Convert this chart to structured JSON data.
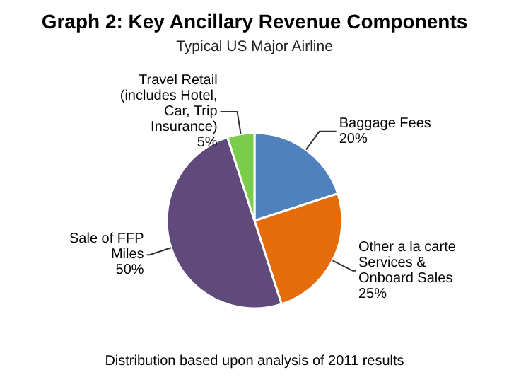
{
  "chart_data": {
    "type": "pie",
    "title": "Graph 2:  Key Ancillary Revenue Components",
    "subtitle": "Typical US Major Airline",
    "categories": [
      "Baggage Fees",
      "Other a la carte Services & Onboard Sales",
      "Sale of FFP Miles",
      "Travel Retail (includes Hotel, Car, Trip Insurance)"
    ],
    "values": [
      20,
      25,
      50,
      5
    ],
    "colors": [
      "#4f81bd",
      "#e46c0a",
      "#604a7b",
      "#7ccc4c"
    ],
    "value_labels": [
      "20%",
      "25%",
      "50%",
      "5%"
    ],
    "annotations": [
      "Distribution based upon analysis of 2011 results"
    ]
  }
}
